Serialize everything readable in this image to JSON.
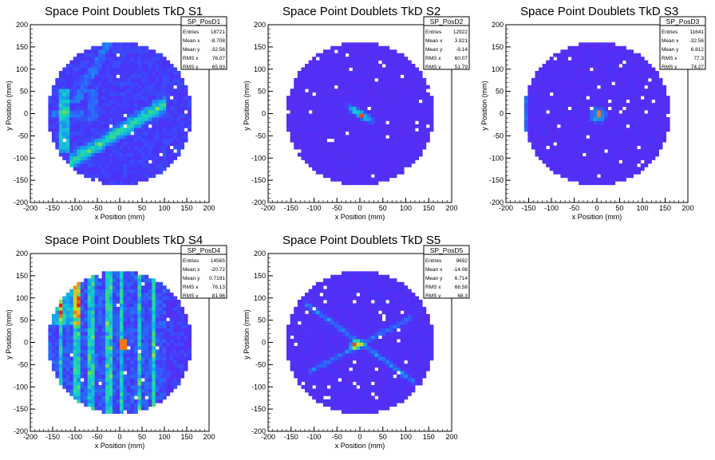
{
  "chart_data": [
    {
      "type": "heatmap",
      "title": "Space Point Doublets TkD S1",
      "xlabel": "x Position (mm)",
      "ylabel": "y Position (mm)",
      "xlim": [
        -200,
        200
      ],
      "ylim": [
        -200,
        200
      ],
      "xticks": [
        -200,
        -150,
        -100,
        -50,
        0,
        50,
        100,
        150,
        200
      ],
      "yticks": [
        -200,
        -150,
        -100,
        -50,
        0,
        50,
        100,
        150,
        200
      ],
      "stats": {
        "name": "SP_PosD1",
        "rows": [
          {
            "label": "Entries",
            "value": "18721"
          },
          {
            "label": "Mean x",
            "value": "-8.708"
          },
          {
            "label": "Mean y",
            "value": "-32.56"
          },
          {
            "label": "RMS x",
            "value": "76.07"
          },
          {
            "label": "RMS y",
            "value": "65.93"
          }
        ]
      },
      "pattern": "band",
      "density_scale": "blue-purple to red"
    },
    {
      "type": "heatmap",
      "title": "Space Point Doublets TkD S2",
      "xlabel": "x Position (mm)",
      "ylabel": "y Position (mm)",
      "xlim": [
        -200,
        200
      ],
      "ylim": [
        -200,
        200
      ],
      "xticks": [
        -200,
        -150,
        -100,
        -50,
        0,
        50,
        100,
        150,
        200
      ],
      "yticks": [
        -200,
        -150,
        -100,
        -50,
        0,
        50,
        100,
        150,
        200
      ],
      "stats": {
        "name": "SP_PosD2",
        "rows": [
          {
            "label": "Entries",
            "value": "12922"
          },
          {
            "label": "Mean x",
            "value": "3.821"
          },
          {
            "label": "Mean y",
            "value": "-9.14"
          },
          {
            "label": "RMS x",
            "value": "60.07"
          },
          {
            "label": "RMS y",
            "value": "51.79"
          }
        ]
      },
      "pattern": "ellipse",
      "density_scale": "blue-purple to red"
    },
    {
      "type": "heatmap",
      "title": "Space Point Doublets TkD S3",
      "xlabel": "x Position (mm)",
      "ylabel": "y Position (mm)",
      "xlim": [
        -200,
        200
      ],
      "ylim": [
        -200,
        200
      ],
      "xticks": [
        -200,
        -150,
        -100,
        -50,
        0,
        50,
        100,
        150,
        200
      ],
      "yticks": [
        -200,
        -150,
        -100,
        -50,
        0,
        50,
        100,
        150,
        200
      ],
      "stats": {
        "name": "SP_PosD3",
        "rows": [
          {
            "label": "Entries",
            "value": "11641"
          },
          {
            "label": "Mean x",
            "value": "-32.56"
          },
          {
            "label": "Mean y",
            "value": "6.812"
          },
          {
            "label": "RMS x",
            "value": "77.3"
          },
          {
            "label": "RMS y",
            "value": "74.27"
          }
        ]
      },
      "pattern": "spot",
      "density_scale": "blue-purple to red"
    },
    {
      "type": "heatmap",
      "title": "Space Point Doublets TkD S4",
      "xlabel": "x Position (mm)",
      "ylabel": "y Position (mm)",
      "xlim": [
        -200,
        200
      ],
      "ylim": [
        -200,
        200
      ],
      "xticks": [
        -200,
        -150,
        -100,
        -50,
        0,
        50,
        100,
        150,
        200
      ],
      "yticks": [
        -200,
        -150,
        -100,
        -50,
        0,
        50,
        100,
        150,
        200
      ],
      "stats": {
        "name": "SP_PosD4",
        "rows": [
          {
            "label": "Entries",
            "value": "14565"
          },
          {
            "label": "Mean x",
            "value": "-20.72"
          },
          {
            "label": "Mean y",
            "value": "0.7191"
          },
          {
            "label": "RMS x",
            "value": "76.13"
          },
          {
            "label": "RMS y",
            "value": "81.96"
          }
        ]
      },
      "pattern": "stripes",
      "density_scale": "blue-purple to red"
    },
    {
      "type": "heatmap",
      "title": "Space Point Doublets TkD S5",
      "xlabel": "x Position (mm)",
      "ylabel": "y Position (mm)",
      "xlim": [
        -200,
        200
      ],
      "ylim": [
        -200,
        200
      ],
      "xticks": [
        -200,
        -150,
        -100,
        -50,
        0,
        50,
        100,
        150,
        200
      ],
      "yticks": [
        -200,
        -150,
        -100,
        -50,
        0,
        50,
        100,
        150,
        200
      ],
      "stats": {
        "name": "SP_PosD5",
        "rows": [
          {
            "label": "Entries",
            "value": "9692"
          },
          {
            "label": "Mean x",
            "value": "-14.08"
          },
          {
            "label": "Mean y",
            "value": "6.714"
          },
          {
            "label": "RMS x",
            "value": "66.58"
          },
          {
            "label": "RMS y",
            "value": "68.3"
          }
        ]
      },
      "pattern": "cross",
      "density_scale": "blue-purple to red"
    }
  ]
}
